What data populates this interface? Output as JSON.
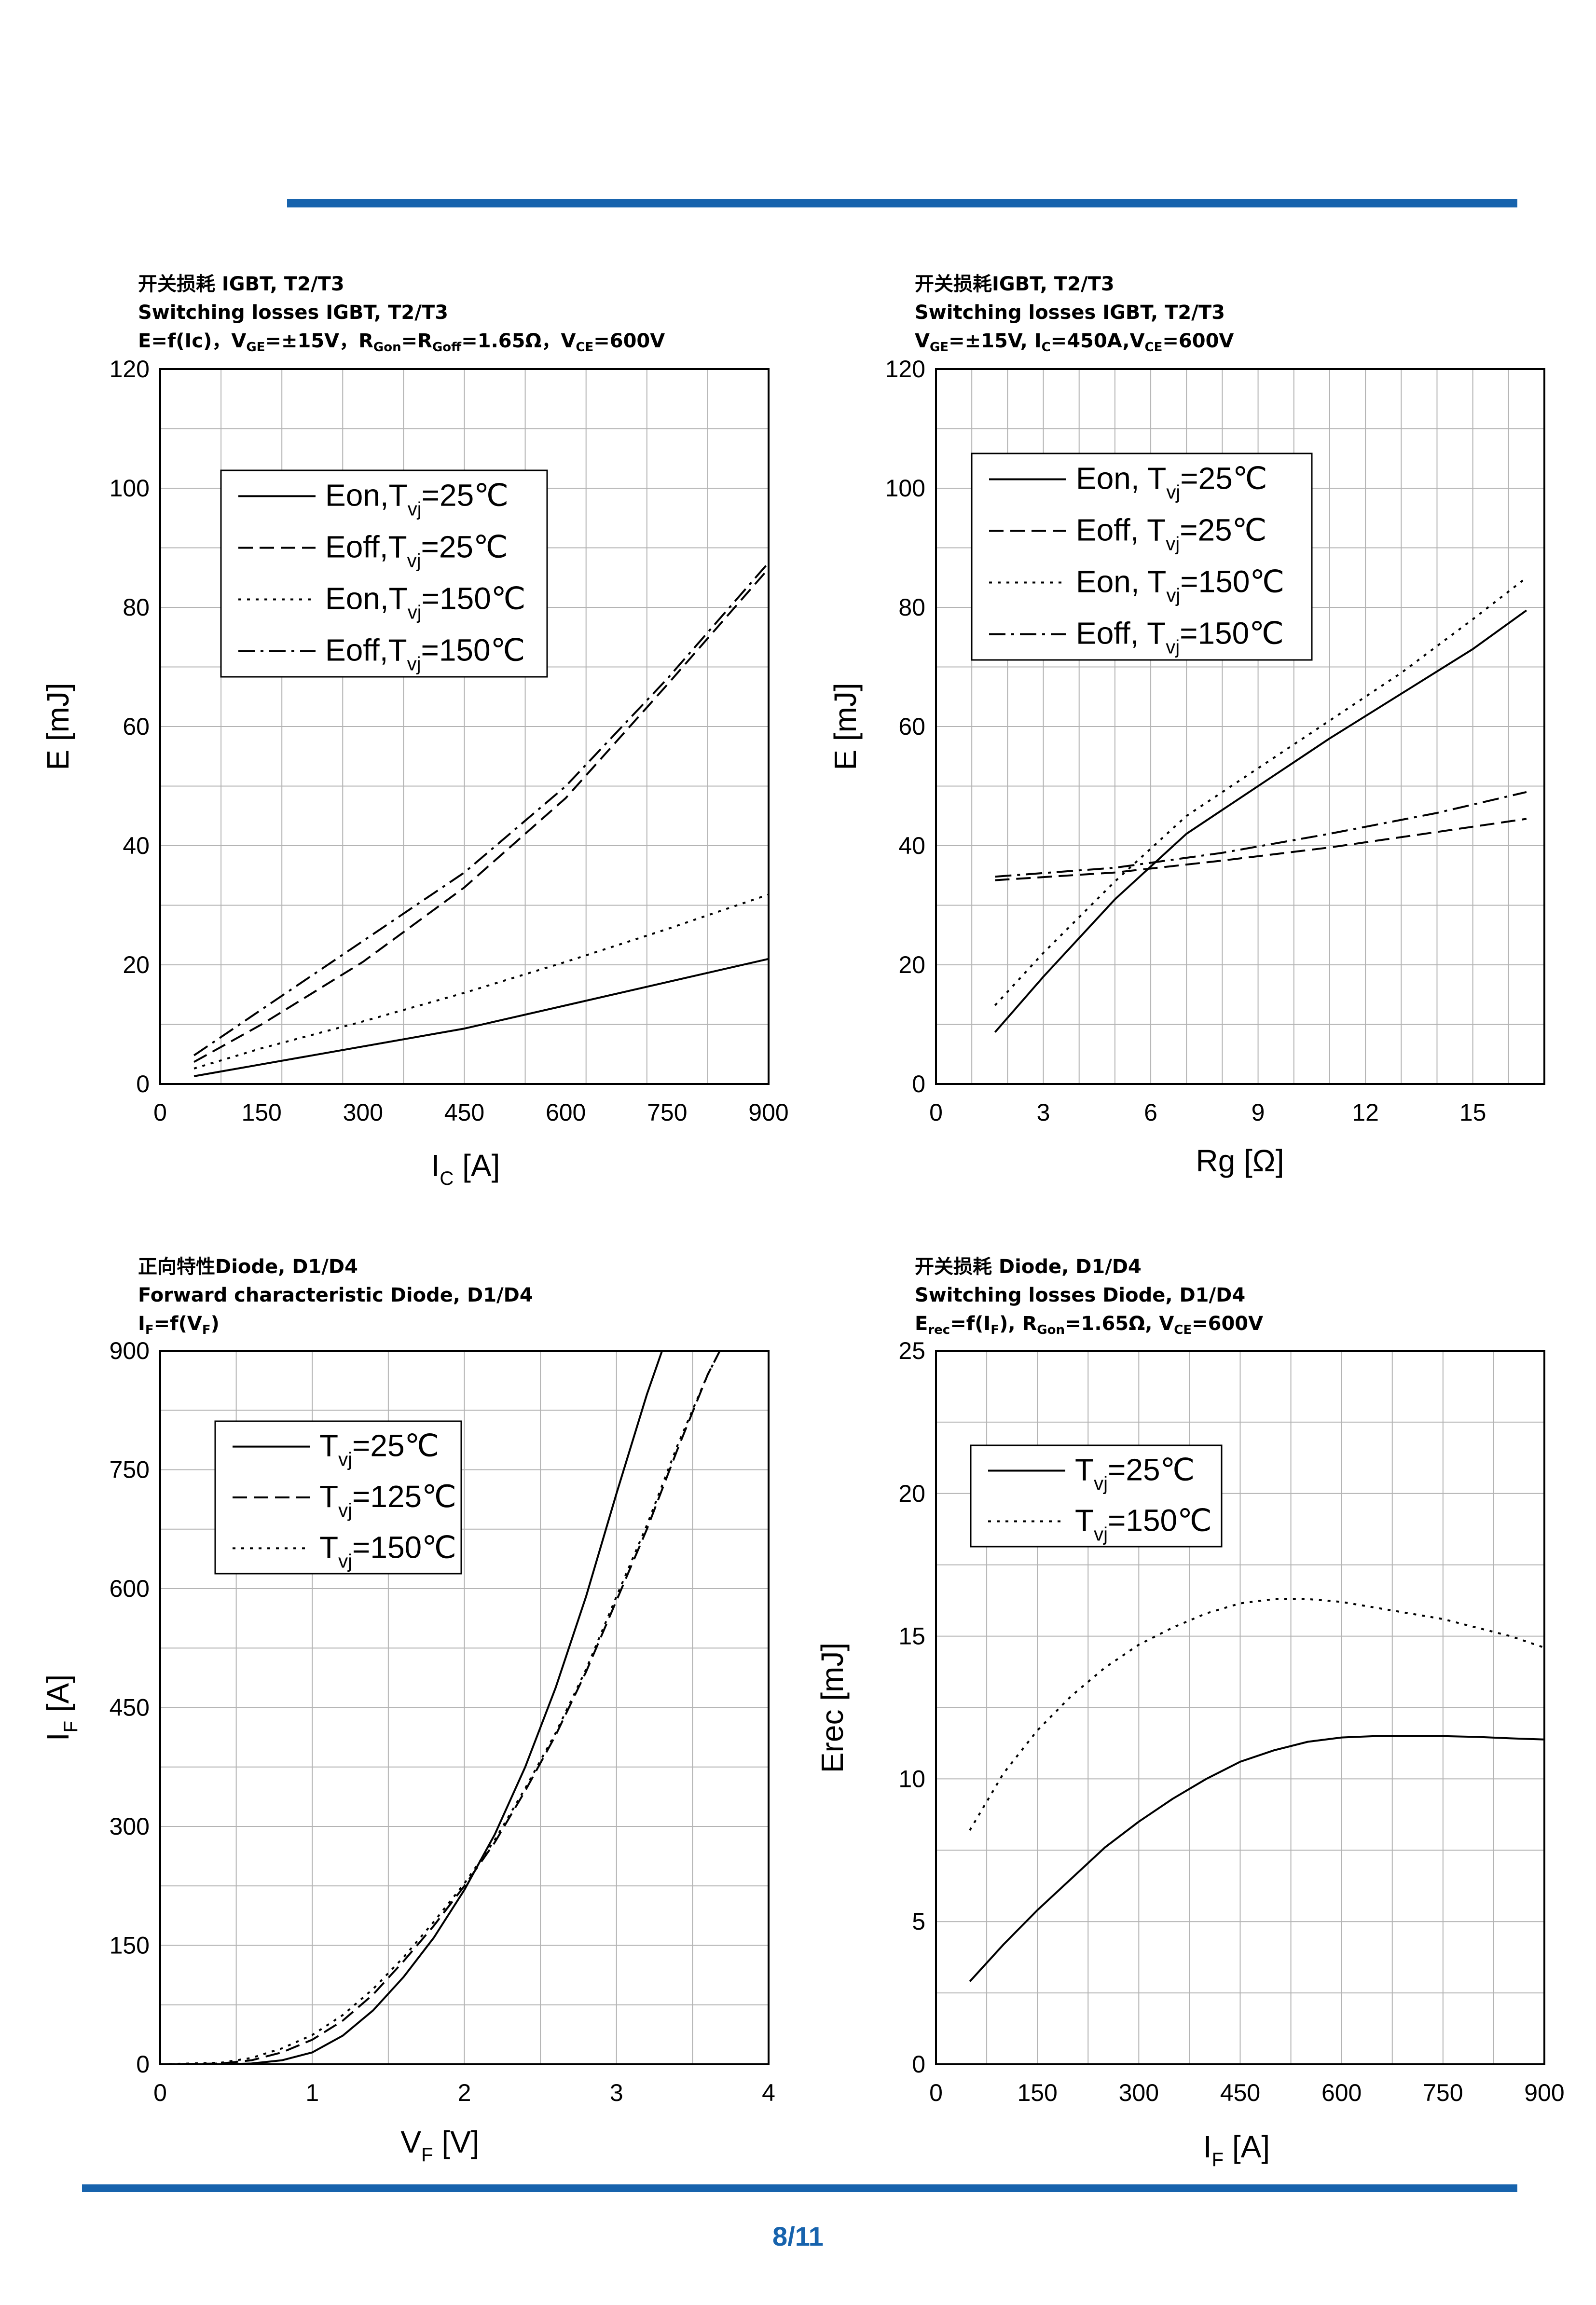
{
  "page": {
    "number": "8/11",
    "accent_color": "#1763ad"
  },
  "charts": [
    {
      "id": "c1",
      "head": {
        "line1": "开关损耗 IGBT, T2/T3",
        "line2": " Switching losses IGBT, T2/T3",
        "line3": [
          {
            "t": "E=f(Ic)，V"
          },
          {
            "t": "GE",
            "s": 1
          },
          {
            "t": "=±15V，R"
          },
          {
            "t": "Gon",
            "s": 1
          },
          {
            "t": "=R"
          },
          {
            "t": "Goff",
            "s": 1
          },
          {
            "t": "=1.65Ω，V"
          },
          {
            "t": "CE",
            "s": 1
          },
          {
            "t": "=600V"
          }
        ]
      },
      "chart_data": {
        "type": "line",
        "title": "Switching losses IGBT, T2/T3",
        "xlabel": {
          "main": "I",
          "sub": "C",
          "unit": " [A]"
        },
        "ylabel": {
          "main": "E [mJ]",
          "sub": "",
          "unit": ""
        },
        "xlim": [
          0,
          900
        ],
        "ylim": [
          0,
          120
        ],
        "xticks": [
          0,
          150,
          300,
          450,
          600,
          750,
          900
        ],
        "yticks": [
          0,
          20,
          40,
          60,
          80,
          100,
          120
        ],
        "xgrid": 10,
        "ygrid": 12,
        "legend": [
          {
            "a": "Eon,T",
            "sub": "vj",
            "b": "=25℃",
            "style": "solid"
          },
          {
            "a": "Eoff,T",
            "sub": "vj",
            "b": "=25℃",
            "style": "dashed"
          },
          {
            "a": "Eon,T",
            "sub": "vj",
            "b": "=150℃",
            "style": "dotted"
          },
          {
            "a": "Eoff,T",
            "sub": "vj",
            "b": "=150℃",
            "style": "dashdot"
          }
        ],
        "series": [
          {
            "name": "Eon, Tvj=25℃",
            "style": "solid",
            "x": [
              50,
              150,
              300,
              450,
              600,
              750,
              900
            ],
            "y": [
              1.3,
              3.3,
              6.3,
              9.3,
              13.2,
              17.1,
              21
            ]
          },
          {
            "name": "Eoff, Tvj=25℃",
            "style": "dashed",
            "x": [
              50,
              150,
              300,
              450,
              600,
              750,
              900
            ],
            "y": [
              3.7,
              10,
              20.5,
              33,
              48,
              67,
              86.5
            ]
          },
          {
            "name": "Eon, Tvj=150℃",
            "style": "dotted",
            "x": [
              50,
              150,
              300,
              450,
              600,
              750,
              900
            ],
            "y": [
              2.6,
              6,
              10.5,
              15.3,
              20.5,
              26,
              31.8
            ]
          },
          {
            "name": "Eoff, Tvj=150℃",
            "style": "dashdot",
            "x": [
              50,
              150,
              300,
              450,
              600,
              750,
              900
            ],
            "y": [
              4.8,
              12.5,
              24,
              35.5,
              50,
              68,
              87.5
            ]
          }
        ]
      }
    },
    {
      "id": "c2",
      "head": {
        "line1": "开关损耗IGBT, T2/T3",
        "line2": "Switching losses IGBT, T2/T3",
        "line3": [
          {
            "t": "V"
          },
          {
            "t": "GE",
            "s": 1
          },
          {
            "t": "=±15V, I"
          },
          {
            "t": "C",
            "s": 1
          },
          {
            "t": "=450A,V"
          },
          {
            "t": "CE",
            "s": 1
          },
          {
            "t": "=600V"
          }
        ]
      },
      "chart_data": {
        "type": "line",
        "title": "Switching losses IGBT, T2/T3",
        "xlabel": {
          "main": "Rg [Ω]",
          "sub": "",
          "unit": ""
        },
        "ylabel": {
          "main": "E [mJ]",
          "sub": "",
          "unit": ""
        },
        "xlim": [
          0,
          17
        ],
        "ylim": [
          0,
          120
        ],
        "xticks": [
          0,
          3,
          6,
          9,
          12,
          15
        ],
        "yticks": [
          0,
          20,
          40,
          60,
          80,
          100,
          120
        ],
        "xgrid": 17,
        "ygrid": 12,
        "legend": [
          {
            "a": "Eon, T",
            "sub": "vj",
            "b": "=25℃",
            "style": "solid"
          },
          {
            "a": "Eoff, T",
            "sub": "vj",
            "b": "=25℃",
            "style": "dashed"
          },
          {
            "a": "Eon, T",
            "sub": "vj",
            "b": "=150℃",
            "style": "dotted"
          },
          {
            "a": "Eoff, T",
            "sub": "vj",
            "b": "=150℃",
            "style": "dashdot"
          }
        ],
        "series": [
          {
            "name": "Eon, Tvj=25℃",
            "style": "solid",
            "x": [
              1.65,
              3,
              5,
              7,
              9,
              11,
              13,
              15,
              16.5
            ],
            "y": [
              8.7,
              18,
              31,
              42,
              50,
              58,
              65.5,
              73,
              79.5
            ]
          },
          {
            "name": "Eoff, Tvj=25℃",
            "style": "dashed",
            "x": [
              1.65,
              5,
              8,
              11,
              14,
              16.5
            ],
            "y": [
              34.2,
              35.5,
              37.5,
              39.7,
              42.3,
              44.5
            ]
          },
          {
            "name": "Eon, Tvj=150℃",
            "style": "dotted",
            "x": [
              1.65,
              3,
              5,
              7,
              9,
              11,
              13,
              15,
              16.5
            ],
            "y": [
              13.2,
              22,
              34,
              45,
              53,
              61,
              69,
              78,
              85
            ]
          },
          {
            "name": "Eoff, Tvj=150℃",
            "style": "dashdot",
            "x": [
              1.65,
              5,
              8,
              11,
              14,
              16.5
            ],
            "y": [
              34.8,
              36.3,
              38.8,
              42,
              45.5,
              49
            ]
          }
        ]
      }
    },
    {
      "id": "c3",
      "head": {
        "line1": "正向特性Diode, D1/D4",
        "line2": " Forward characteristic Diode, D1/D4",
        "line3": [
          {
            "t": "I"
          },
          {
            "t": "F",
            "s": 1
          },
          {
            "t": "=f(V"
          },
          {
            "t": "F",
            "s": 1
          },
          {
            "t": ")"
          }
        ]
      },
      "chart_data": {
        "type": "line",
        "title": "Forward characteristic Diode, D1/D4",
        "xlabel": {
          "main": "V",
          "sub": "F",
          "unit": " [V]"
        },
        "ylabel": {
          "main": "I",
          "sub": "F",
          "unit": " [A]"
        },
        "xlim": [
          0,
          4
        ],
        "ylim": [
          0,
          900
        ],
        "xticks": [
          0,
          1,
          2,
          3,
          4
        ],
        "yticks": [
          0,
          150,
          300,
          450,
          600,
          750,
          900
        ],
        "xgrid": 8,
        "ygrid": 12,
        "legend": [
          {
            "a": "T",
            "sub": "vj",
            "b": "=25℃",
            "style": "solid"
          },
          {
            "a": "T",
            "sub": "vj",
            "b": "=125℃",
            "style": "dashed"
          },
          {
            "a": "T",
            "sub": "vj",
            "b": "=150℃",
            "style": "dotted"
          }
        ],
        "series": [
          {
            "name": "Tvj=25℃",
            "style": "solid",
            "x": [
              0,
              0.4,
              0.6,
              0.8,
              1,
              1.2,
              1.4,
              1.6,
              1.8,
              2,
              2.2,
              2.4,
              2.6,
              2.8,
              3,
              3.2,
              3.3
            ],
            "y": [
              0,
              0,
              1,
              5,
              15,
              36,
              68,
              110,
              160,
              220,
              290,
              375,
              475,
              590,
              720,
              845,
              900
            ]
          },
          {
            "name": "Tvj=125℃",
            "style": "dashed",
            "x": [
              0,
              0.4,
              0.6,
              0.8,
              1,
              1.2,
              1.4,
              1.6,
              1.8,
              2,
              2.2,
              2.4,
              2.6,
              2.8,
              3,
              3.2,
              3.4,
              3.6,
              3.68
            ],
            "y": [
              0,
              1,
              5,
              15,
              31,
              55,
              88,
              130,
              175,
              225,
              280,
              345,
              415,
              495,
              585,
              675,
              775,
              870,
              900
            ]
          },
          {
            "name": "Tvj=150℃",
            "style": "dotted",
            "x": [
              0,
              0.4,
              0.6,
              0.8,
              1,
              1.2,
              1.4,
              1.6,
              1.8,
              2,
              2.2,
              2.4,
              2.6,
              2.8,
              3,
              3.2,
              3.4,
              3.6,
              3.68
            ],
            "y": [
              0,
              2,
              8,
              20,
              37,
              62,
              95,
              135,
              180,
              228,
              283,
              348,
              418,
              498,
              590,
              680,
              780,
              870,
              900
            ]
          }
        ]
      }
    },
    {
      "id": "c4",
      "head": {
        "line1": "开关损耗 Diode, D1/D4",
        "line2": "Switching losses Diode, D1/D4",
        "line3": [
          {
            "t": "E"
          },
          {
            "t": "rec",
            "s": 1
          },
          {
            "t": "=f(I"
          },
          {
            "t": "F",
            "s": 1
          },
          {
            "t": "), R"
          },
          {
            "t": "Gon",
            "s": 1
          },
          {
            "t": "=1.65Ω, V"
          },
          {
            "t": "CE",
            "s": 1
          },
          {
            "t": "=600V"
          }
        ]
      },
      "chart_data": {
        "type": "line",
        "title": "Switching losses Diode, D1/D4",
        "xlabel": {
          "main": "I",
          "sub": "F",
          "unit": " [A]"
        },
        "ylabel": {
          "main": "Erec [mJ]",
          "sub": "",
          "unit": ""
        },
        "xlim": [
          0,
          900
        ],
        "ylim": [
          0,
          25
        ],
        "xticks": [
          0,
          150,
          300,
          450,
          600,
          750,
          900
        ],
        "yticks": [
          0,
          5,
          10,
          15,
          20,
          25
        ],
        "xgrid": 12,
        "ygrid": 10,
        "legend": [
          {
            "a": "T",
            "sub": "vj",
            "b": "=25℃",
            "style": "solid"
          },
          {
            "a": "T",
            "sub": "vj",
            "b": "=150℃",
            "style": "dotted"
          }
        ],
        "series": [
          {
            "name": "Tvj=25℃",
            "style": "solid",
            "x": [
              50,
              100,
              150,
              200,
              250,
              300,
              350,
              400,
              450,
              500,
              550,
              600,
              650,
              700,
              750,
              800,
              850,
              900
            ],
            "y": [
              2.9,
              4.2,
              5.4,
              6.5,
              7.6,
              8.5,
              9.3,
              10.0,
              10.6,
              11.0,
              11.3,
              11.45,
              11.5,
              11.5,
              11.5,
              11.47,
              11.42,
              11.38
            ]
          },
          {
            "name": "Tvj=150℃",
            "style": "dotted",
            "x": [
              50,
              100,
              150,
              200,
              250,
              300,
              350,
              400,
              450,
              500,
              550,
              600,
              650,
              700,
              750,
              800,
              850,
              900
            ],
            "y": [
              8.2,
              10.2,
              11.7,
              12.9,
              13.9,
              14.7,
              15.3,
              15.8,
              16.15,
              16.3,
              16.3,
              16.2,
              16.0,
              15.8,
              15.6,
              15.3,
              15.0,
              14.6
            ]
          }
        ]
      }
    }
  ]
}
